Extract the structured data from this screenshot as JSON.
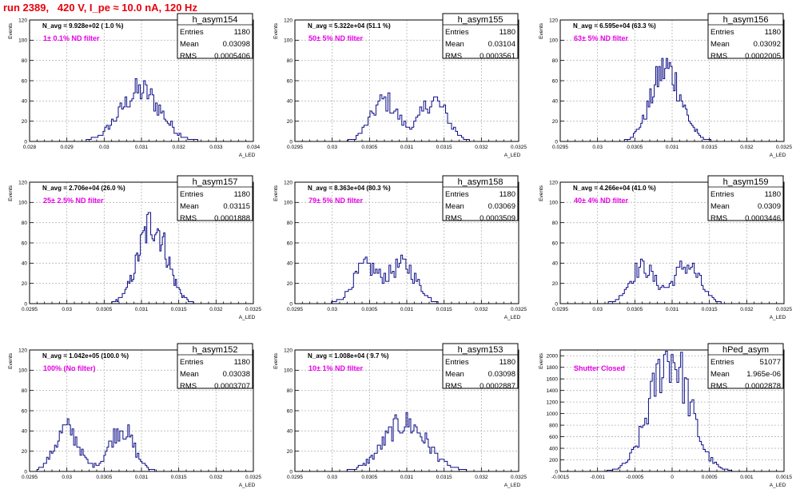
{
  "page": {
    "title": "run 2389,   420 V, I_pe ≈ 10.0 nA, 120 Hz"
  },
  "chart_data": [
    {
      "type": "histogram",
      "name": "h_asym154",
      "stats": [
        [
          "Entries",
          "1180"
        ],
        [
          "Mean",
          "0.03098"
        ],
        [
          "RMS",
          "0.0005406"
        ]
      ],
      "navg": "N_avg = 9.928e+02 ( 1.0 %)",
      "filter": "1± 0.1% ND filter",
      "xlabel": "A_LED",
      "ylabel": "Events",
      "xlim": [
        0.028,
        0.034
      ],
      "ylim": [
        0,
        120
      ],
      "xticks": [
        0.028,
        0.029,
        0.03,
        0.031,
        0.032,
        0.033,
        0.034
      ],
      "xtick_labels": [
        "0.028",
        "0.029",
        "0.03",
        "0.031",
        "0.032",
        "0.033",
        "0.034"
      ],
      "yticks": [
        0,
        20,
        40,
        60,
        80,
        100,
        120
      ],
      "peaks": [
        [
          0.03098,
          0.0005406,
          50
        ]
      ],
      "bin_range": [
        0.0292,
        0.0326
      ]
    },
    {
      "type": "histogram",
      "name": "h_asym155",
      "stats": [
        [
          "Entries",
          "1180"
        ],
        [
          "Mean",
          "0.03104"
        ],
        [
          "RMS",
          "0.0003561"
        ]
      ],
      "navg": "N_avg = 5.322e+04 (51.1 %)",
      "filter": "50± 5% ND filter",
      "xlabel": "A_LED",
      "ylabel": "Events",
      "xlim": [
        0.0295,
        0.0325
      ],
      "ylim": [
        0,
        120
      ],
      "xticks": [
        0.0295,
        0.03,
        0.0305,
        0.031,
        0.0315,
        0.032,
        0.0325
      ],
      "xtick_labels": [
        "0.0295",
        "0.03",
        "0.0305",
        "0.031",
        "0.0315",
        "0.032",
        "0.0325"
      ],
      "yticks": [
        0,
        20,
        40,
        60,
        80,
        100,
        120
      ],
      "peaks": [
        [
          0.0307,
          0.00018,
          40
        ],
        [
          0.03136,
          0.00018,
          40
        ]
      ],
      "bin_range": [
        0.03,
        0.032
      ]
    },
    {
      "type": "histogram",
      "name": "h_asym156",
      "stats": [
        [
          "Entries",
          "1180"
        ],
        [
          "Mean",
          "0.03092"
        ],
        [
          "RMS",
          "0.0002005"
        ]
      ],
      "navg": "N_avg = 6.595e+04 (63.3 %)",
      "filter": "63± 5% ND filter",
      "xlabel": "A_LED",
      "ylabel": "Events",
      "xlim": [
        0.0295,
        0.0325
      ],
      "ylim": [
        0,
        120
      ],
      "xticks": [
        0.0295,
        0.03,
        0.0305,
        0.031,
        0.0315,
        0.032,
        0.0325
      ],
      "xtick_labels": [
        "0.0295",
        "0.03",
        "0.0305",
        "0.031",
        "0.0315",
        "0.032",
        "0.0325"
      ],
      "yticks": [
        0,
        20,
        40,
        60,
        80,
        100,
        120
      ],
      "peaks": [
        [
          0.03092,
          0.0002005,
          72
        ]
      ],
      "bin_range": [
        0.0302,
        0.0317
      ]
    },
    {
      "type": "histogram",
      "name": "h_asym157",
      "stats": [
        [
          "Entries",
          "1180"
        ],
        [
          "Mean",
          "0.03115"
        ],
        [
          "RMS",
          "0.0001888"
        ]
      ],
      "navg": "N_avg = 2.706e+04 (26.0 %)",
      "filter": "25± 2.5% ND filter",
      "xlabel": "A_LED",
      "ylabel": "Events",
      "xlim": [
        0.0295,
        0.0325
      ],
      "ylim": [
        0,
        120
      ],
      "xticks": [
        0.0295,
        0.03,
        0.0305,
        0.031,
        0.0315,
        0.032,
        0.0325
      ],
      "xtick_labels": [
        "0.0295",
        "0.03",
        "0.0305",
        "0.031",
        "0.0315",
        "0.032",
        "0.0325"
      ],
      "yticks": [
        0,
        20,
        40,
        60,
        80,
        100,
        120
      ],
      "peaks": [
        [
          0.03115,
          0.0001888,
          80
        ]
      ],
      "bin_range": [
        0.0305,
        0.0318
      ]
    },
    {
      "type": "histogram",
      "name": "h_asym158",
      "stats": [
        [
          "Entries",
          "1180"
        ],
        [
          "Mean",
          "0.03069"
        ],
        [
          "RMS",
          "0.0003509"
        ]
      ],
      "navg": "N_avg = 8.363e+04 (80.3 %)",
      "filter": "79± 5% ND filter",
      "xlabel": "A_LED",
      "ylabel": "Events",
      "xlim": [
        0.0295,
        0.0325
      ],
      "ylim": [
        0,
        120
      ],
      "xticks": [
        0.0295,
        0.03,
        0.0305,
        0.031,
        0.0315,
        0.032,
        0.0325
      ],
      "xtick_labels": [
        "0.0295",
        "0.03",
        "0.0305",
        "0.031",
        "0.0315",
        "0.032",
        "0.0325"
      ],
      "yticks": [
        0,
        20,
        40,
        60,
        80,
        100,
        120
      ],
      "peaks": [
        [
          0.03045,
          0.00017,
          36
        ],
        [
          0.03095,
          0.00018,
          38
        ]
      ],
      "bin_range": [
        0.0299,
        0.0316
      ]
    },
    {
      "type": "histogram",
      "name": "h_asym159",
      "stats": [
        [
          "Entries",
          "1180"
        ],
        [
          "Mean",
          "0.0309"
        ],
        [
          "RMS",
          "0.0003446"
        ]
      ],
      "navg": "N_avg = 4.266e+04 (41.0 %)",
      "filter": "40± 4% ND filter",
      "xlabel": "A_LED",
      "ylabel": "Events",
      "xlim": [
        0.0295,
        0.0325
      ],
      "ylim": [
        0,
        120
      ],
      "xticks": [
        0.0295,
        0.03,
        0.0305,
        0.031,
        0.0315,
        0.032,
        0.0325
      ],
      "xtick_labels": [
        "0.0295",
        "0.03",
        "0.0305",
        "0.031",
        "0.0315",
        "0.032",
        "0.0325"
      ],
      "yticks": [
        0,
        20,
        40,
        60,
        80,
        100,
        120
      ],
      "peaks": [
        [
          0.0306,
          0.00017,
          36
        ],
        [
          0.0312,
          0.00017,
          38
        ]
      ],
      "bin_range": [
        0.03,
        0.0318
      ]
    },
    {
      "type": "histogram",
      "name": "h_asym152",
      "stats": [
        [
          "Entries",
          "1180"
        ],
        [
          "Mean",
          "0.03038"
        ],
        [
          "RMS",
          "0.0003707"
        ]
      ],
      "navg": "N_avg = 1.042e+05 (100.0 %)",
      "filter": "100% (No filter)",
      "xlabel": "A_LED",
      "ylabel": "Events",
      "xlim": [
        0.0295,
        0.0325
      ],
      "ylim": [
        0,
        120
      ],
      "xticks": [
        0.0295,
        0.03,
        0.0305,
        0.031,
        0.0315,
        0.032,
        0.0325
      ],
      "xtick_labels": [
        "0.0295",
        "0.03",
        "0.0305",
        "0.031",
        "0.0315",
        "0.032",
        "0.0325"
      ],
      "yticks": [
        0,
        20,
        40,
        60,
        80,
        100,
        120
      ],
      "peaks": [
        [
          0.03,
          0.00016,
          42
        ],
        [
          0.03073,
          0.00016,
          43
        ]
      ],
      "bin_range": [
        0.0296,
        0.0312
      ]
    },
    {
      "type": "histogram",
      "name": "h_asym153",
      "stats": [
        [
          "Entries",
          "1180"
        ],
        [
          "Mean",
          "0.03098"
        ],
        [
          "RMS",
          "0.0002887"
        ]
      ],
      "navg": "N_avg = 1.008e+04 ( 9.7 %)",
      "filter": "10± 1% ND filter",
      "xlabel": "A_LED",
      "ylabel": "Events",
      "xlim": [
        0.0295,
        0.0325
      ],
      "ylim": [
        0,
        120
      ],
      "xticks": [
        0.0295,
        0.03,
        0.0305,
        0.031,
        0.0315,
        0.032,
        0.0325
      ],
      "xtick_labels": [
        "0.0295",
        "0.03",
        "0.0305",
        "0.031",
        "0.0315",
        "0.032",
        "0.0325"
      ],
      "yticks": [
        0,
        20,
        40,
        60,
        80,
        100,
        120
      ],
      "peaks": [
        [
          0.03098,
          0.0002887,
          48
        ]
      ],
      "bin_range": [
        0.0302,
        0.0318
      ]
    },
    {
      "type": "histogram",
      "name": "hPed_asym",
      "stats": [
        [
          "Entries",
          "51077"
        ],
        [
          "Mean",
          "1.965e-06"
        ],
        [
          "RMS",
          "0.0002878"
        ]
      ],
      "navg": "",
      "filter": "Shutter Closed",
      "xlabel": "A_LED",
      "ylabel": "Events",
      "xlim": [
        -0.0015,
        0.0015
      ],
      "ylim": [
        0,
        2100
      ],
      "xticks": [
        -0.0015,
        -0.001,
        -0.0005,
        0,
        0.0005,
        0.001,
        0.0015
      ],
      "xtick_labels": [
        "-0.0015",
        "-0.001",
        "-0.0005",
        "0",
        "0.0005",
        "0.001",
        "0.0015"
      ],
      "yticks": [
        0,
        200,
        400,
        600,
        800,
        1000,
        1200,
        1400,
        1600,
        1800,
        2000
      ],
      "peaks": [
        [
          -3e-05,
          0.00026,
          2000
        ]
      ],
      "bin_range": [
        -0.00095,
        0.00095
      ]
    }
  ]
}
